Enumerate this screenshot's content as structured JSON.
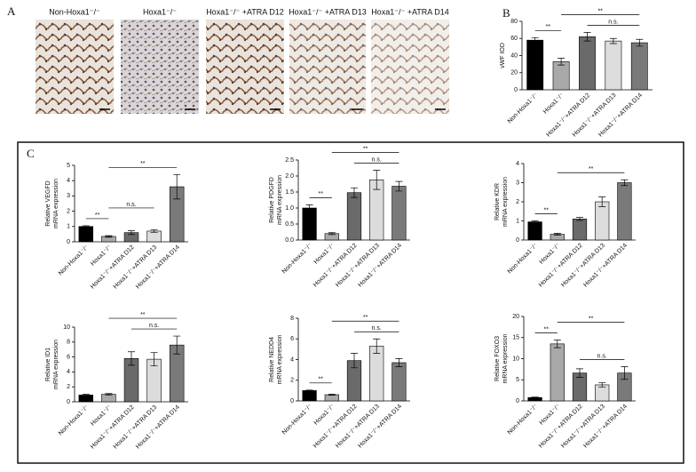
{
  "panel_labels": [
    "A",
    "B",
    "C"
  ],
  "images": {
    "labels": [
      "Non-Hoxa1⁻/⁻",
      "Hoxa1⁻/⁻",
      "Hoxa1⁻/⁻ +ATRA D12",
      "Hoxa1⁻/⁻ +ATRA D13",
      "Hoxa1⁻/⁻ +ATRA D14"
    ]
  },
  "chart_data": [
    {
      "type": "bar",
      "ylabel": [
        "vWF IOD"
      ],
      "categories": [
        "Non-Hoxa1⁻/⁻",
        "Hoxa1⁻/⁻",
        "Hoxa1⁻/⁻+ATRA D12",
        "Hoxa1⁻/⁻+ATRA D13",
        "Hoxa1⁻/⁻+ATRA D14"
      ],
      "values": [
        58,
        33,
        62,
        57,
        55
      ],
      "errors": [
        3,
        4,
        5,
        3,
        4
      ],
      "colors": [
        "#000000",
        "#a9a9a9",
        "#6a6a6a",
        "#dcdcdc",
        "#7a7a7a"
      ],
      "ylim": [
        0,
        80
      ],
      "yticks": [
        0,
        20,
        40,
        60,
        80
      ],
      "significance": [
        {
          "text": "**",
          "span": [
            0,
            1
          ]
        },
        {
          "text": "n.s.",
          "span": [
            2,
            4
          ]
        },
        {
          "text": "**",
          "span": [
            1,
            4
          ]
        }
      ]
    },
    {
      "type": "bar",
      "ylabel": [
        "Relative VEGFD",
        "mRNA expression"
      ],
      "categories": [
        "Non-Hoxa1⁻/⁻",
        "Hoxa1⁻/⁻",
        "Hoxa1⁻/⁻+ATRA D12",
        "Hoxa1⁻/⁻+ATRA D13",
        "Hoxa1⁻/⁻+ATRA D14"
      ],
      "values": [
        1.0,
        0.35,
        0.6,
        0.7,
        3.6
      ],
      "errors": [
        0.05,
        0.05,
        0.12,
        0.08,
        0.8
      ],
      "colors": [
        "#000000",
        "#a9a9a9",
        "#6a6a6a",
        "#dcdcdc",
        "#7a7a7a"
      ],
      "ylim": [
        0,
        5
      ],
      "yticks": [
        0,
        1,
        2,
        3,
        4,
        5
      ],
      "significance": [
        {
          "text": "**",
          "span": [
            0,
            1
          ]
        },
        {
          "text": "n.s.",
          "span": [
            1,
            3
          ]
        },
        {
          "text": "**",
          "span": [
            1,
            4
          ]
        }
      ]
    },
    {
      "type": "bar",
      "ylabel": [
        "Relative PDGFD",
        "mRNA expression"
      ],
      "categories": [
        "Non-Hoxa1⁻/⁻",
        "Hoxa1⁻/⁻",
        "Hoxa1⁻/⁻+ATRA D12",
        "Hoxa1⁻/⁻+ATRA D13",
        "Hoxa1⁻/⁻+ATRA D14"
      ],
      "values": [
        1.0,
        0.2,
        1.48,
        1.88,
        1.68
      ],
      "errors": [
        0.1,
        0.03,
        0.15,
        0.3,
        0.15
      ],
      "colors": [
        "#000000",
        "#a9a9a9",
        "#6a6a6a",
        "#dcdcdc",
        "#7a7a7a"
      ],
      "ylim": [
        0,
        2.5
      ],
      "yticks": [
        {
          "value": 0,
          "label": "0.0"
        },
        0.5,
        {
          "value": 1,
          "label": "1.0"
        },
        1.5,
        {
          "value": 2,
          "label": "2.0"
        },
        2.5
      ],
      "significance": [
        {
          "text": "**",
          "span": [
            0,
            1
          ]
        },
        {
          "text": "n.s.",
          "span": [
            2,
            4
          ]
        },
        {
          "text": "**",
          "span": [
            1,
            4
          ]
        }
      ]
    },
    {
      "type": "bar",
      "ylabel": [
        "Relative KDR",
        "mRNA expression"
      ],
      "categories": [
        "Non-Hoxa1⁻/⁻",
        "Hoxa1⁻/⁻",
        "Hoxa1⁻/⁻+ATRA D12",
        "Hoxa1⁻/⁻+ATRA D13",
        "Hoxa1⁻/⁻+ATRA D14"
      ],
      "values": [
        0.95,
        0.3,
        1.1,
        2.0,
        3.0
      ],
      "errors": [
        0.05,
        0.05,
        0.08,
        0.25,
        0.15
      ],
      "colors": [
        "#000000",
        "#a9a9a9",
        "#6a6a6a",
        "#dcdcdc",
        "#7a7a7a"
      ],
      "ylim": [
        0,
        4
      ],
      "yticks": [
        0,
        1,
        2,
        3,
        4
      ],
      "significance": [
        {
          "text": "**",
          "span": [
            0,
            1
          ]
        },
        {
          "text": "**",
          "span": [
            1,
            4
          ]
        }
      ]
    },
    {
      "type": "bar",
      "ylabel": [
        "Relative ID1",
        "mRNA expression"
      ],
      "categories": [
        "Non-Hoxa1⁻/⁻",
        "Hoxa1⁻/⁻",
        "Hoxa1⁻/⁻+ATRA D12",
        "Hoxa1⁻/⁻+ATRA D13",
        "Hoxa1⁻/⁻+ATRA D14"
      ],
      "values": [
        0.9,
        1.0,
        5.8,
        5.7,
        7.6
      ],
      "errors": [
        0.1,
        0.1,
        0.9,
        0.9,
        1.2
      ],
      "colors": [
        "#000000",
        "#a9a9a9",
        "#6a6a6a",
        "#dcdcdc",
        "#7a7a7a"
      ],
      "ylim": [
        0,
        10
      ],
      "yticks": [
        0,
        2,
        4,
        6,
        8,
        10
      ],
      "significance": [
        {
          "text": "n.s.",
          "span": [
            2,
            4
          ]
        },
        {
          "text": "**",
          "span": [
            1,
            4
          ]
        }
      ]
    },
    {
      "type": "bar",
      "ylabel": [
        "Relative NEDD4",
        "mRNA expression"
      ],
      "categories": [
        "Non-Hoxa1⁻/⁻",
        "Hoxa1⁻/⁻",
        "Hoxa1⁻/⁻+ATRA D12",
        "Hoxa1⁻/⁻+ATRA D13",
        "Hoxa1⁻/⁻+ATRA D14"
      ],
      "values": [
        1.0,
        0.6,
        3.9,
        5.3,
        3.7
      ],
      "errors": [
        0.05,
        0.05,
        0.7,
        0.7,
        0.4
      ],
      "colors": [
        "#000000",
        "#a9a9a9",
        "#6a6a6a",
        "#dcdcdc",
        "#7a7a7a"
      ],
      "ylim": [
        0,
        8
      ],
      "yticks": [
        0,
        2,
        4,
        6,
        8
      ],
      "significance": [
        {
          "text": "**",
          "span": [
            0,
            1
          ]
        },
        {
          "text": "n.s.",
          "span": [
            2,
            4
          ]
        },
        {
          "text": "**",
          "span": [
            1,
            4
          ]
        }
      ]
    },
    {
      "type": "bar",
      "ylabel": [
        "Relative FOXO3",
        "mRNA expression"
      ],
      "categories": [
        "Non-Hoxa1⁻/⁻",
        "Hoxa1⁻/⁻",
        "Hoxa1⁻/⁻+ATRA D12",
        "Hoxa1⁻/⁻+ATRA D13",
        "Hoxa1⁻/⁻+ATRA D14"
      ],
      "values": [
        0.8,
        13.5,
        6.6,
        3.8,
        6.6
      ],
      "errors": [
        0.1,
        0.9,
        1.0,
        0.5,
        1.5
      ],
      "colors": [
        "#000000",
        "#a9a9a9",
        "#6a6a6a",
        "#dcdcdc",
        "#7a7a7a"
      ],
      "ylim": [
        0,
        20
      ],
      "yticks": [
        0,
        5,
        10,
        15,
        20
      ],
      "significance": [
        {
          "text": "**",
          "span": [
            0,
            1
          ]
        },
        {
          "text": "n.s.",
          "span": [
            2,
            4
          ]
        },
        {
          "text": "**",
          "span": [
            1,
            4
          ]
        }
      ]
    }
  ]
}
